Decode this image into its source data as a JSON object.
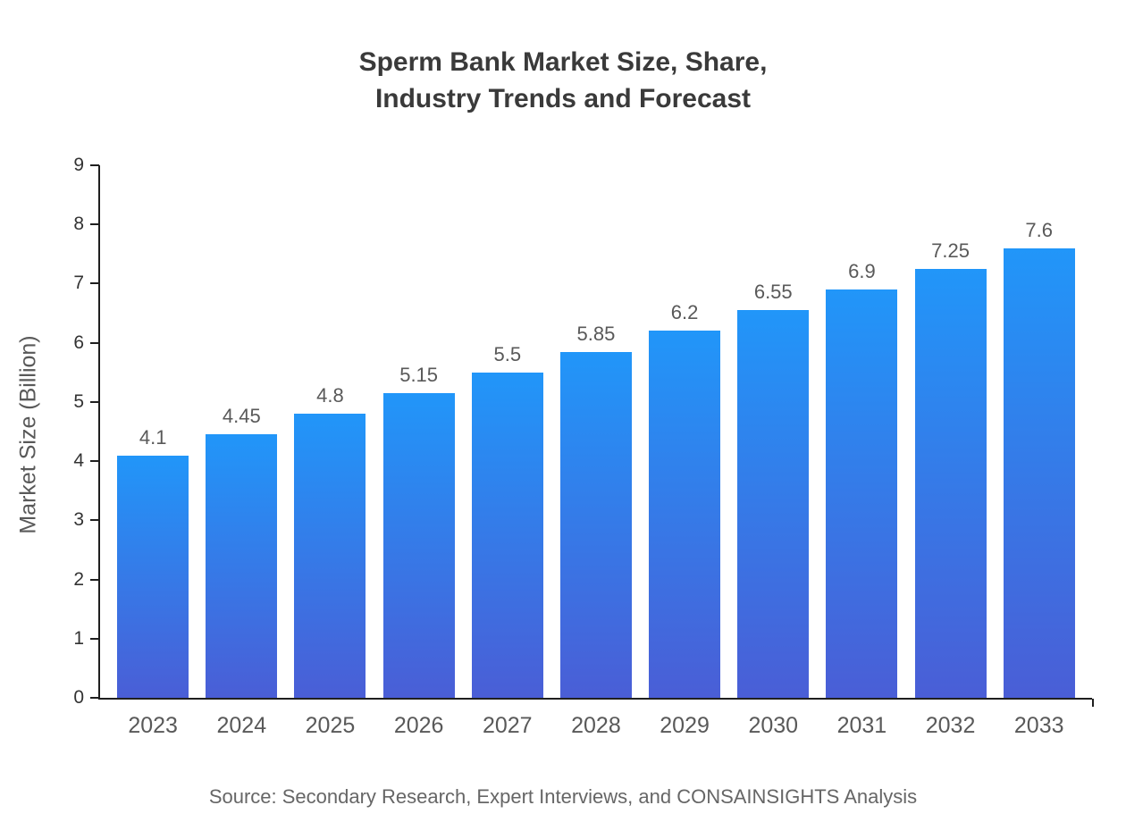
{
  "chart_data": {
    "type": "bar",
    "title_line1": "Sperm Bank Market Size, Share,",
    "title_line2": "Industry Trends and Forecast",
    "categories": [
      "2023",
      "2024",
      "2025",
      "2026",
      "2027",
      "2028",
      "2029",
      "2030",
      "2031",
      "2032",
      "2033"
    ],
    "values": [
      4.1,
      4.45,
      4.8,
      5.15,
      5.5,
      5.85,
      6.2,
      6.55,
      6.9,
      7.25,
      7.6
    ],
    "value_labels": [
      "4.1",
      "4.45",
      "4.8",
      "5.15",
      "5.5",
      "5.85",
      "6.2",
      "6.55",
      "6.9",
      "7.25",
      "7.6"
    ],
    "xlabel": "",
    "ylabel": "Market Size (Billion)",
    "ylim": [
      0,
      9
    ],
    "yticks": [
      0,
      1,
      2,
      3,
      4,
      5,
      6,
      7,
      8,
      9
    ],
    "grid": "off",
    "legend": "none",
    "bar_color_top": "#2196f9",
    "bar_color_bottom": "#4a5ed6",
    "axis_color": "#1f1f1f",
    "source": "Source: Secondary Research, Expert Interviews, and CONSAINSIGHTS Analysis"
  }
}
